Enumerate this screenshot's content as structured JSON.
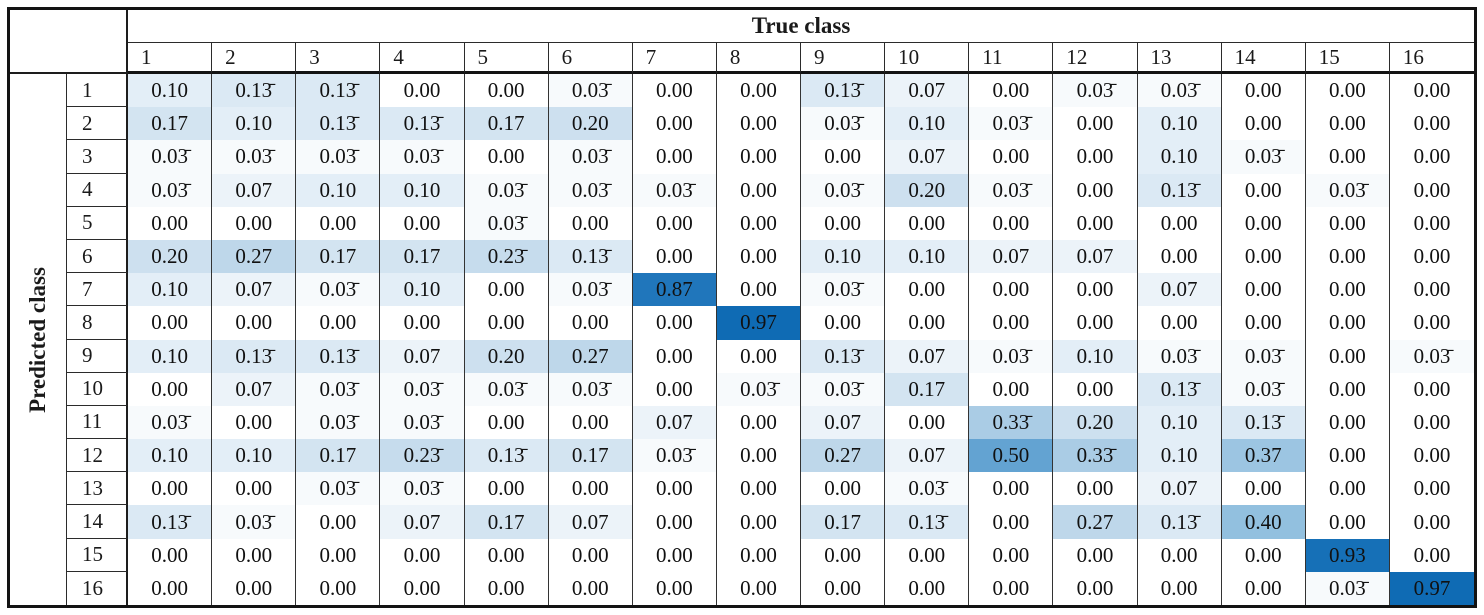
{
  "chart_data": {
    "type": "heatmap",
    "x_axis_label": "True class",
    "y_axis_label": "Predicted class",
    "x_categories": [
      "1",
      "2",
      "3",
      "4",
      "5",
      "6",
      "7",
      "8",
      "9",
      "10",
      "11",
      "12",
      "13",
      "14",
      "15",
      "16"
    ],
    "y_categories": [
      "1",
      "2",
      "3",
      "4",
      "5",
      "6",
      "7",
      "8",
      "9",
      "10",
      "11",
      "12",
      "13",
      "14",
      "15",
      "16"
    ],
    "value_range": [
      0,
      1
    ],
    "value_notation": "macron over the final digit marks a repeating decimal (e.g. 0.13̄ = 0.1333...)",
    "values_display": [
      [
        "0.10",
        "0.13̄",
        "0.13̄",
        "0.00",
        "0.00",
        "0.03̄",
        "0.00",
        "0.00",
        "0.13̄",
        "0.07",
        "0.00",
        "0.03̄",
        "0.03̄",
        "0.00",
        "0.00",
        "0.00"
      ],
      [
        "0.17",
        "0.10",
        "0.13̄",
        "0.13̄",
        "0.17",
        "0.20",
        "0.00",
        "0.00",
        "0.03̄",
        "0.10",
        "0.03̄",
        "0.00",
        "0.10",
        "0.00",
        "0.00",
        "0.00"
      ],
      [
        "0.03̄",
        "0.03̄",
        "0.03̄",
        "0.03̄",
        "0.00",
        "0.03̄",
        "0.00",
        "0.00",
        "0.00",
        "0.07",
        "0.00",
        "0.00",
        "0.10",
        "0.03̄",
        "0.00",
        "0.00"
      ],
      [
        "0.03̄",
        "0.07",
        "0.10",
        "0.10",
        "0.03̄",
        "0.03̄",
        "0.03̄",
        "0.00",
        "0.03̄",
        "0.20",
        "0.03̄",
        "0.00",
        "0.13̄",
        "0.00",
        "0.03̄",
        "0.00"
      ],
      [
        "0.00",
        "0.00",
        "0.00",
        "0.00",
        "0.03̄",
        "0.00",
        "0.00",
        "0.00",
        "0.00",
        "0.00",
        "0.00",
        "0.00",
        "0.00",
        "0.00",
        "0.00",
        "0.00"
      ],
      [
        "0.20",
        "0.27",
        "0.17",
        "0.17",
        "0.23̄",
        "0.13̄",
        "0.00",
        "0.00",
        "0.10",
        "0.10",
        "0.07",
        "0.07",
        "0.00",
        "0.00",
        "0.00",
        "0.00"
      ],
      [
        "0.10",
        "0.07",
        "0.03̄",
        "0.10",
        "0.00",
        "0.03̄",
        "0.87",
        "0.00",
        "0.03̄",
        "0.00",
        "0.00",
        "0.00",
        "0.07",
        "0.00",
        "0.00",
        "0.00"
      ],
      [
        "0.00",
        "0.00",
        "0.00",
        "0.00",
        "0.00",
        "0.00",
        "0.00",
        "0.97",
        "0.00",
        "0.00",
        "0.00",
        "0.00",
        "0.00",
        "0.00",
        "0.00",
        "0.00"
      ],
      [
        "0.10",
        "0.13̄",
        "0.13̄",
        "0.07",
        "0.20",
        "0.27",
        "0.00",
        "0.00",
        "0.13̄",
        "0.07",
        "0.03̄",
        "0.10",
        "0.03̄",
        "0.03̄",
        "0.00",
        "0.03̄"
      ],
      [
        "0.00",
        "0.07",
        "0.03̄",
        "0.03̄",
        "0.03̄",
        "0.03̄",
        "0.00",
        "0.03̄",
        "0.03̄",
        "0.17",
        "0.00",
        "0.00",
        "0.13̄",
        "0.03̄",
        "0.00",
        "0.00"
      ],
      [
        "0.03̄",
        "0.00",
        "0.03̄",
        "0.03̄",
        "0.00",
        "0.00",
        "0.07",
        "0.00",
        "0.07",
        "0.00",
        "0.33̄",
        "0.20",
        "0.10",
        "0.13̄",
        "0.00",
        "0.00"
      ],
      [
        "0.10",
        "0.10",
        "0.17",
        "0.23̄",
        "0.13̄",
        "0.17",
        "0.03̄",
        "0.00",
        "0.27",
        "0.07",
        "0.50",
        "0.33̄",
        "0.10",
        "0.37",
        "0.00",
        "0.00"
      ],
      [
        "0.00",
        "0.00",
        "0.03̄",
        "0.03̄",
        "0.00",
        "0.00",
        "0.00",
        "0.00",
        "0.00",
        "0.03̄",
        "0.00",
        "0.00",
        "0.07",
        "0.00",
        "0.00",
        "0.00"
      ],
      [
        "0.13̄",
        "0.03̄",
        "0.00",
        "0.07",
        "0.17",
        "0.07",
        "0.00",
        "0.00",
        "0.17",
        "0.13̄",
        "0.00",
        "0.27",
        "0.13̄",
        "0.40",
        "0.00",
        "0.00"
      ],
      [
        "0.00",
        "0.00",
        "0.00",
        "0.00",
        "0.00",
        "0.00",
        "0.00",
        "0.00",
        "0.00",
        "0.00",
        "0.00",
        "0.00",
        "0.00",
        "0.00",
        "0.93",
        "0.00"
      ],
      [
        "0.00",
        "0.00",
        "0.00",
        "0.00",
        "0.00",
        "0.00",
        "0.00",
        "0.00",
        "0.00",
        "0.00",
        "0.00",
        "0.00",
        "0.00",
        "0.00",
        "0.03̄",
        "0.97"
      ]
    ],
    "color_scale": [
      {
        "v": 0.0,
        "c": "#ffffff"
      },
      {
        "v": 0.13,
        "c": "#dbe9f4"
      },
      {
        "v": 0.27,
        "c": "#bed7ea"
      },
      {
        "v": 0.4,
        "c": "#92c0df"
      },
      {
        "v": 0.5,
        "c": "#63a3d2"
      },
      {
        "v": 0.87,
        "c": "#2076bb"
      },
      {
        "v": 1.0,
        "c": "#0a68b2"
      }
    ],
    "legend_position": "none",
    "grid": "vertical-lines-only"
  }
}
